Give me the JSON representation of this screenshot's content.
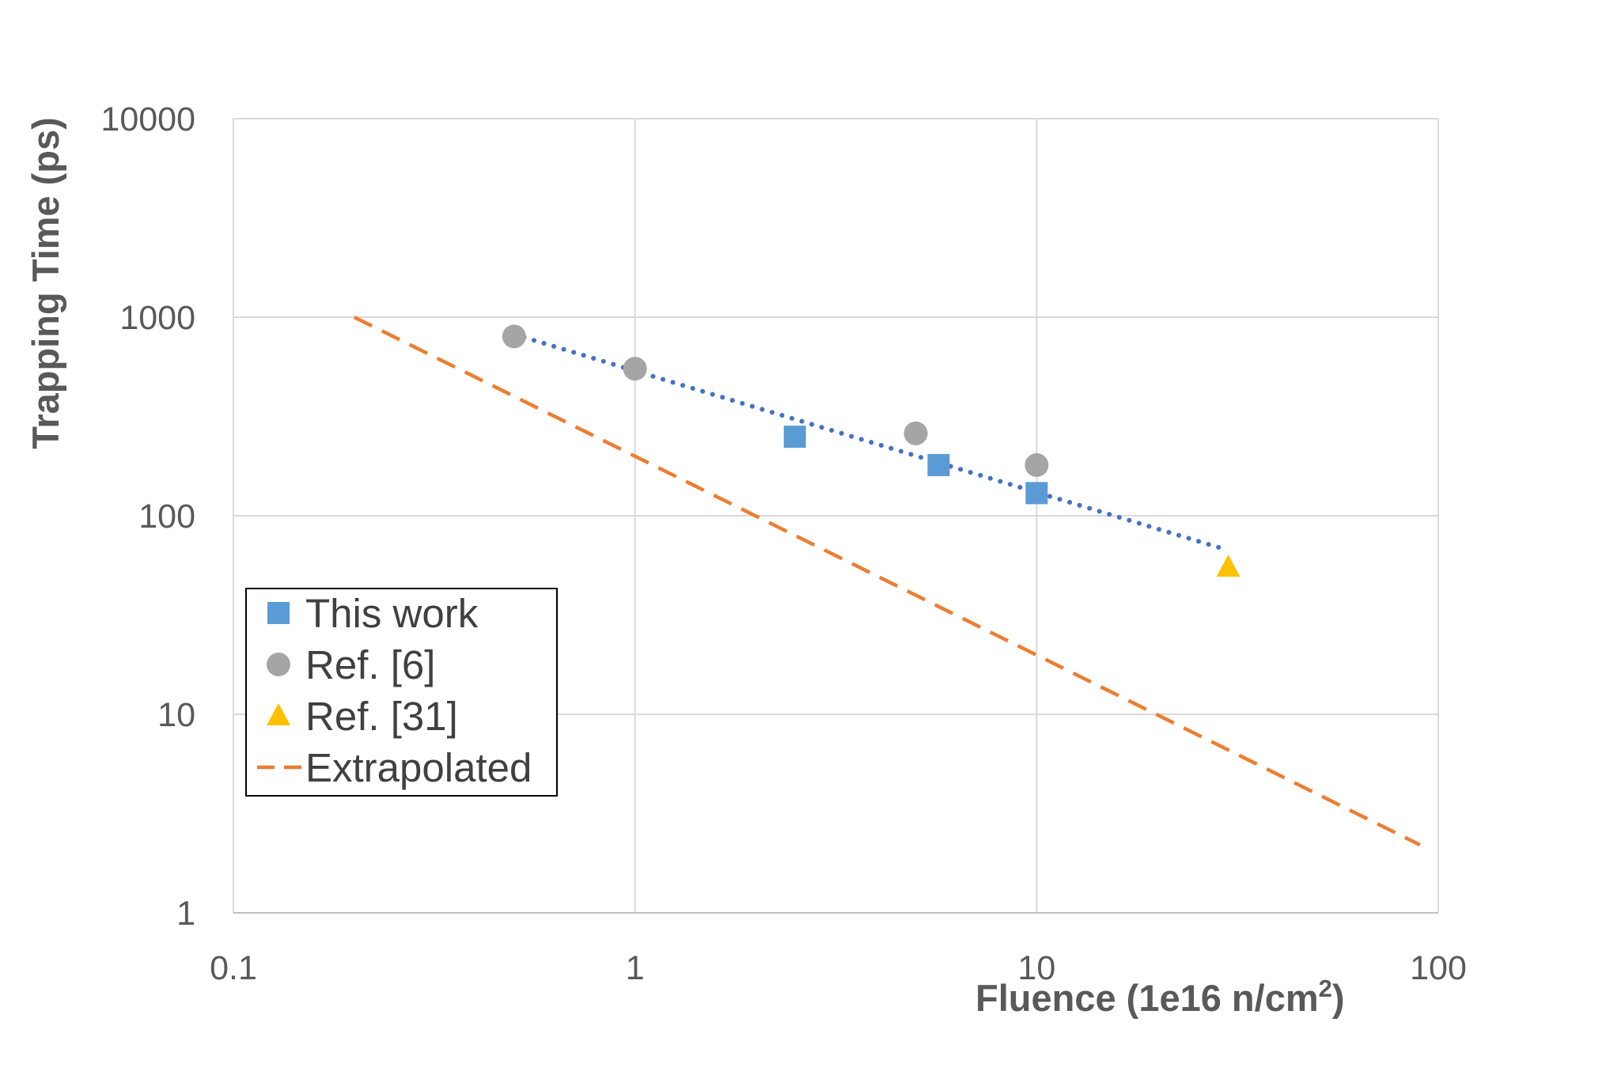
{
  "chart_data": {
    "type": "scatter",
    "xlabel": "Fluence (1e16 n/cm²)",
    "ylabel": "Trapping Time (ps)",
    "x_scale": "log",
    "y_scale": "log",
    "xlim": [
      0.1,
      100
    ],
    "ylim": [
      1,
      10000
    ],
    "x_ticks": [
      "0.1",
      "1",
      "10",
      "100"
    ],
    "y_ticks": [
      "1",
      "10",
      "100",
      "1000",
      "10000"
    ],
    "grid": true,
    "legend_position": "left",
    "series": [
      {
        "name": "This work",
        "marker": "square",
        "color": "#5B9BD5",
        "points": [
          [
            2.5,
            250
          ],
          [
            5.7,
            180
          ],
          [
            10,
            130
          ]
        ]
      },
      {
        "name": "Ref. [6]",
        "marker": "circle",
        "color": "#A5A5A5",
        "points": [
          [
            0.5,
            800
          ],
          [
            1,
            550
          ],
          [
            5,
            260
          ],
          [
            10,
            180
          ]
        ]
      },
      {
        "name": "Ref. [31]",
        "marker": "triangle",
        "color": "#FFC000",
        "points": [
          [
            30,
            55
          ]
        ]
      },
      {
        "name": "Extrapolated",
        "marker": "dashed-line",
        "color": "#ED7D31",
        "points": [
          [
            0.2,
            1000
          ],
          [
            90,
            2.2
          ]
        ]
      }
    ],
    "trendline": {
      "style": "dotted",
      "color": "#4472C4",
      "points": [
        [
          0.5,
          820
        ],
        [
          30,
          67
        ]
      ]
    }
  }
}
